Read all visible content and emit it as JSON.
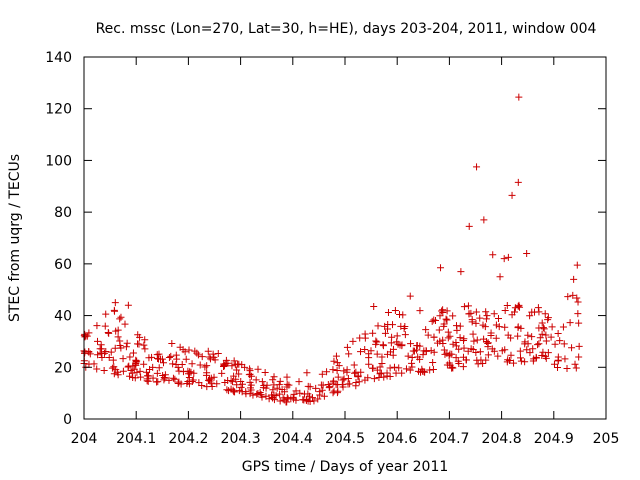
{
  "chart_data": {
    "type": "scatter",
    "title": "Rec. mssc (Lon=270, Lat=30, h=HE), days 203-204, 2011, window 004",
    "xlabel": "GPS time / Days of year 2011",
    "ylabel": "STEC from uqrg / TECUs",
    "xlim": [
      204,
      205
    ],
    "ylim": [
      0,
      140
    ],
    "xticks": [
      204,
      204.1,
      204.2,
      204.3,
      204.4,
      204.5,
      204.6,
      204.7,
      204.8,
      204.9,
      205
    ],
    "yticks": [
      0,
      20,
      40,
      60,
      80,
      100,
      120,
      140
    ],
    "grid": false,
    "legend": "none",
    "marker": "plus",
    "color": "#cc0000",
    "band_lower": [
      [
        204.0,
        20
      ],
      [
        204.05,
        18
      ],
      [
        204.1,
        15
      ],
      [
        204.15,
        14
      ],
      [
        204.2,
        13
      ],
      [
        204.25,
        12
      ],
      [
        204.3,
        10
      ],
      [
        204.35,
        8
      ],
      [
        204.4,
        6
      ],
      [
        204.45,
        7
      ],
      [
        204.5,
        11
      ],
      [
        204.55,
        15
      ],
      [
        204.6,
        17
      ],
      [
        204.65,
        18
      ],
      [
        204.7,
        19
      ],
      [
        204.75,
        21
      ],
      [
        204.8,
        22
      ],
      [
        204.85,
        21
      ],
      [
        204.9,
        20
      ],
      [
        204.95,
        19
      ]
    ],
    "band_upper": [
      [
        204.0,
        38
      ],
      [
        204.05,
        44
      ],
      [
        204.1,
        33
      ],
      [
        204.15,
        30
      ],
      [
        204.2,
        28
      ],
      [
        204.25,
        26
      ],
      [
        204.3,
        22
      ],
      [
        204.35,
        18
      ],
      [
        204.4,
        16
      ],
      [
        204.45,
        20
      ],
      [
        204.5,
        27
      ],
      [
        204.55,
        38
      ],
      [
        204.6,
        43
      ],
      [
        204.65,
        44
      ],
      [
        204.7,
        42
      ],
      [
        204.75,
        45
      ],
      [
        204.8,
        48
      ],
      [
        204.85,
        44
      ],
      [
        204.9,
        42
      ],
      [
        204.95,
        52
      ]
    ],
    "outliers": [
      {
        "x": 204.833,
        "y": 124.5
      },
      {
        "x": 204.752,
        "y": 97.5
      },
      {
        "x": 204.832,
        "y": 91.5
      },
      {
        "x": 204.82,
        "y": 86.5
      },
      {
        "x": 204.766,
        "y": 77.0
      },
      {
        "x": 204.738,
        "y": 74.5
      },
      {
        "x": 204.848,
        "y": 64.0
      },
      {
        "x": 204.783,
        "y": 63.5
      },
      {
        "x": 204.813,
        "y": 62.5
      },
      {
        "x": 204.805,
        "y": 62.0
      },
      {
        "x": 204.945,
        "y": 59.5
      },
      {
        "x": 204.683,
        "y": 58.5
      },
      {
        "x": 204.722,
        "y": 57.0
      },
      {
        "x": 204.797,
        "y": 55.0
      },
      {
        "x": 204.938,
        "y": 54.0
      },
      {
        "x": 204.06,
        "y": 45.0
      },
      {
        "x": 204.085,
        "y": 44.0
      },
      {
        "x": 204.555,
        "y": 43.5
      },
      {
        "x": 204.625,
        "y": 47.5
      }
    ]
  }
}
